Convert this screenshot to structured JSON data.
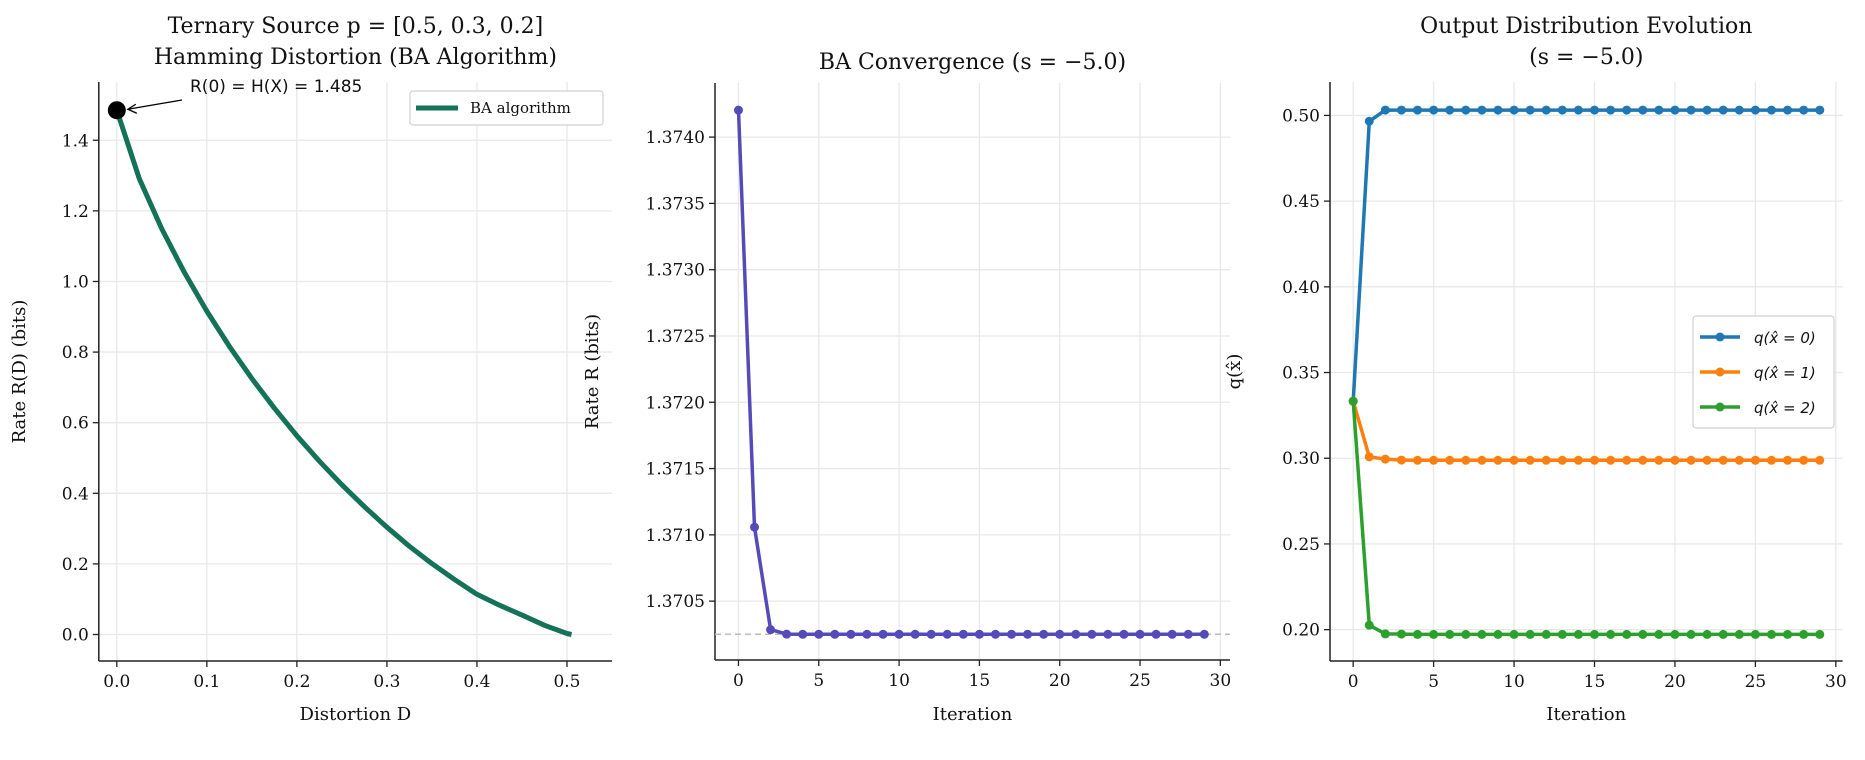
{
  "chart_data": [
    {
      "type": "line",
      "title": [
        "Ternary Source p = [0.5, 0.3, 0.2]",
        "Hamming Distortion (BA Algorithm)"
      ],
      "xlabel": "Distortion D",
      "ylabel": "Rate R(D) (bits)",
      "xlim": [
        -0.02,
        0.55
      ],
      "ylim": [
        -0.075,
        1.565
      ],
      "grid": true,
      "legend_position": "upper-right",
      "xticks": [
        0.0,
        0.1,
        0.2,
        0.3,
        0.4,
        0.5
      ],
      "xtick_labels": [
        "0.0",
        "0.1",
        "0.2",
        "0.3",
        "0.4",
        "0.5"
      ],
      "yticks": [
        0.0,
        0.2,
        0.4,
        0.6,
        0.8,
        1.0,
        1.2,
        1.4
      ],
      "ytick_labels": [
        "0.0",
        "0.2",
        "0.4",
        "0.6",
        "0.8",
        "1.0",
        "1.2",
        "1.4"
      ],
      "series": [
        {
          "name": "BA algorithm",
          "color": "#137257",
          "x": [
            0,
            0.025,
            0.05,
            0.075,
            0.1,
            0.125,
            0.15,
            0.175,
            0.2,
            0.225,
            0.25,
            0.275,
            0.3,
            0.325,
            0.35,
            0.375,
            0.4,
            0.425,
            0.45,
            0.475,
            0.5,
            0.505
          ],
          "y": [
            1.485,
            1.291,
            1.149,
            1.026,
            0.916,
            0.816,
            0.725,
            0.641,
            0.563,
            0.491,
            0.424,
            0.362,
            0.304,
            0.25,
            0.201,
            0.156,
            0.114,
            0.083,
            0.055,
            0.026,
            0.003,
            0.0
          ]
        }
      ],
      "annotation": {
        "text": "R(0) = H(X) = 1.485",
        "x": 0,
        "y": 1.485,
        "marker_color": "#000000"
      }
    },
    {
      "type": "line",
      "title": [
        "BA Convergence (s = −5.0)"
      ],
      "xlabel": "Iteration",
      "ylabel": "Rate R (bits)",
      "xlim": [
        -1.46,
        30.6
      ],
      "ylim": [
        1.370056,
        1.374408
      ],
      "grid": true,
      "xticks": [
        0,
        5,
        10,
        15,
        20,
        25,
        30
      ],
      "xtick_labels": [
        "0",
        "5",
        "10",
        "15",
        "20",
        "25",
        "30"
      ],
      "yticks": [
        1.3705,
        1.371,
        1.3715,
        1.372,
        1.3725,
        1.373,
        1.3735,
        1.374
      ],
      "ytick_labels": [
        "1.3705",
        "1.3710",
        "1.3715",
        "1.3720",
        "1.3725",
        "1.3730",
        "1.3735",
        "1.3740"
      ],
      "reference_line": {
        "y": 1.37025,
        "style": "dashed",
        "color": "#bbbbbb"
      },
      "series": [
        {
          "color": "#544bb9",
          "x": [
            0,
            1,
            2,
            3,
            4,
            5,
            6,
            7,
            8,
            9,
            10,
            11,
            12,
            13,
            14,
            15,
            16,
            17,
            18,
            19,
            20,
            21,
            22,
            23,
            24,
            25,
            26,
            27,
            28,
            29
          ],
          "y": [
            1.374203,
            1.371058,
            1.370285,
            1.370251,
            1.37025,
            1.37025,
            1.37025,
            1.37025,
            1.37025,
            1.37025,
            1.37025,
            1.37025,
            1.37025,
            1.37025,
            1.37025,
            1.37025,
            1.37025,
            1.37025,
            1.37025,
            1.37025,
            1.37025,
            1.37025,
            1.37025,
            1.37025,
            1.37025,
            1.37025,
            1.37025,
            1.37025,
            1.37025,
            1.37025
          ]
        }
      ]
    },
    {
      "type": "line",
      "title": [
        "Output Distribution Evolution",
        "(s = −5.0)"
      ],
      "xlabel": "Iteration",
      "ylabel": "q(x̂)",
      "xlim": [
        -1.44,
        30.42
      ],
      "ylim": [
        0.1817,
        0.5195
      ],
      "grid": true,
      "legend_position": "center-right",
      "xticks": [
        0,
        5,
        10,
        15,
        20,
        25,
        30
      ],
      "xtick_labels": [
        "0",
        "5",
        "10",
        "15",
        "20",
        "25",
        "30"
      ],
      "yticks": [
        0.2,
        0.25,
        0.3,
        0.35,
        0.4,
        0.45,
        0.5
      ],
      "ytick_labels": [
        "0.20",
        "0.25",
        "0.30",
        "0.35",
        "0.40",
        "0.45",
        "0.50"
      ],
      "series": [
        {
          "name": "q(x̂ = 0)",
          "color": "#1f77b4",
          "x": [
            0,
            1,
            2,
            3,
            4,
            5,
            6,
            7,
            8,
            9,
            10,
            11,
            12,
            13,
            14,
            15,
            16,
            17,
            18,
            19,
            20,
            21,
            22,
            23,
            24,
            25,
            26,
            27,
            28,
            29
          ],
          "y": [
            0.3333,
            0.4966,
            0.5031,
            0.5031,
            0.5031,
            0.5031,
            0.5031,
            0.5031,
            0.5031,
            0.5031,
            0.5031,
            0.5031,
            0.5031,
            0.5031,
            0.5031,
            0.5031,
            0.5031,
            0.5031,
            0.5031,
            0.5031,
            0.5031,
            0.5031,
            0.5031,
            0.5031,
            0.5031,
            0.5031,
            0.5031,
            0.5031,
            0.5031,
            0.5031
          ]
        },
        {
          "name": "q(x̂ = 1)",
          "color": "#ff7f0e",
          "x": [
            0,
            1,
            2,
            3,
            4,
            5,
            6,
            7,
            8,
            9,
            10,
            11,
            12,
            13,
            14,
            15,
            16,
            17,
            18,
            19,
            20,
            21,
            22,
            23,
            24,
            25,
            26,
            27,
            28,
            29
          ],
          "y": [
            0.3333,
            0.3008,
            0.2995,
            0.2989,
            0.2988,
            0.2988,
            0.2988,
            0.2988,
            0.2988,
            0.2988,
            0.2988,
            0.2988,
            0.2988,
            0.2988,
            0.2988,
            0.2988,
            0.2988,
            0.2988,
            0.2988,
            0.2988,
            0.2988,
            0.2988,
            0.2988,
            0.2988,
            0.2988,
            0.2988,
            0.2988,
            0.2988,
            0.2988,
            0.2988
          ]
        },
        {
          "name": "q(x̂ = 2)",
          "color": "#2ca02c",
          "x": [
            0,
            1,
            2,
            3,
            4,
            5,
            6,
            7,
            8,
            9,
            10,
            11,
            12,
            13,
            14,
            15,
            16,
            17,
            18,
            19,
            20,
            21,
            22,
            23,
            24,
            25,
            26,
            27,
            28,
            29
          ],
          "y": [
            0.3333,
            0.2026,
            0.1975,
            0.1974,
            0.1972,
            0.1972,
            0.1972,
            0.1972,
            0.1972,
            0.1972,
            0.1972,
            0.1972,
            0.1972,
            0.1972,
            0.1972,
            0.1972,
            0.1972,
            0.1972,
            0.1972,
            0.1972,
            0.1972,
            0.1972,
            0.1972,
            0.1972,
            0.1972,
            0.1972,
            0.1972,
            0.1972,
            0.1972,
            0.1972
          ]
        }
      ]
    }
  ]
}
